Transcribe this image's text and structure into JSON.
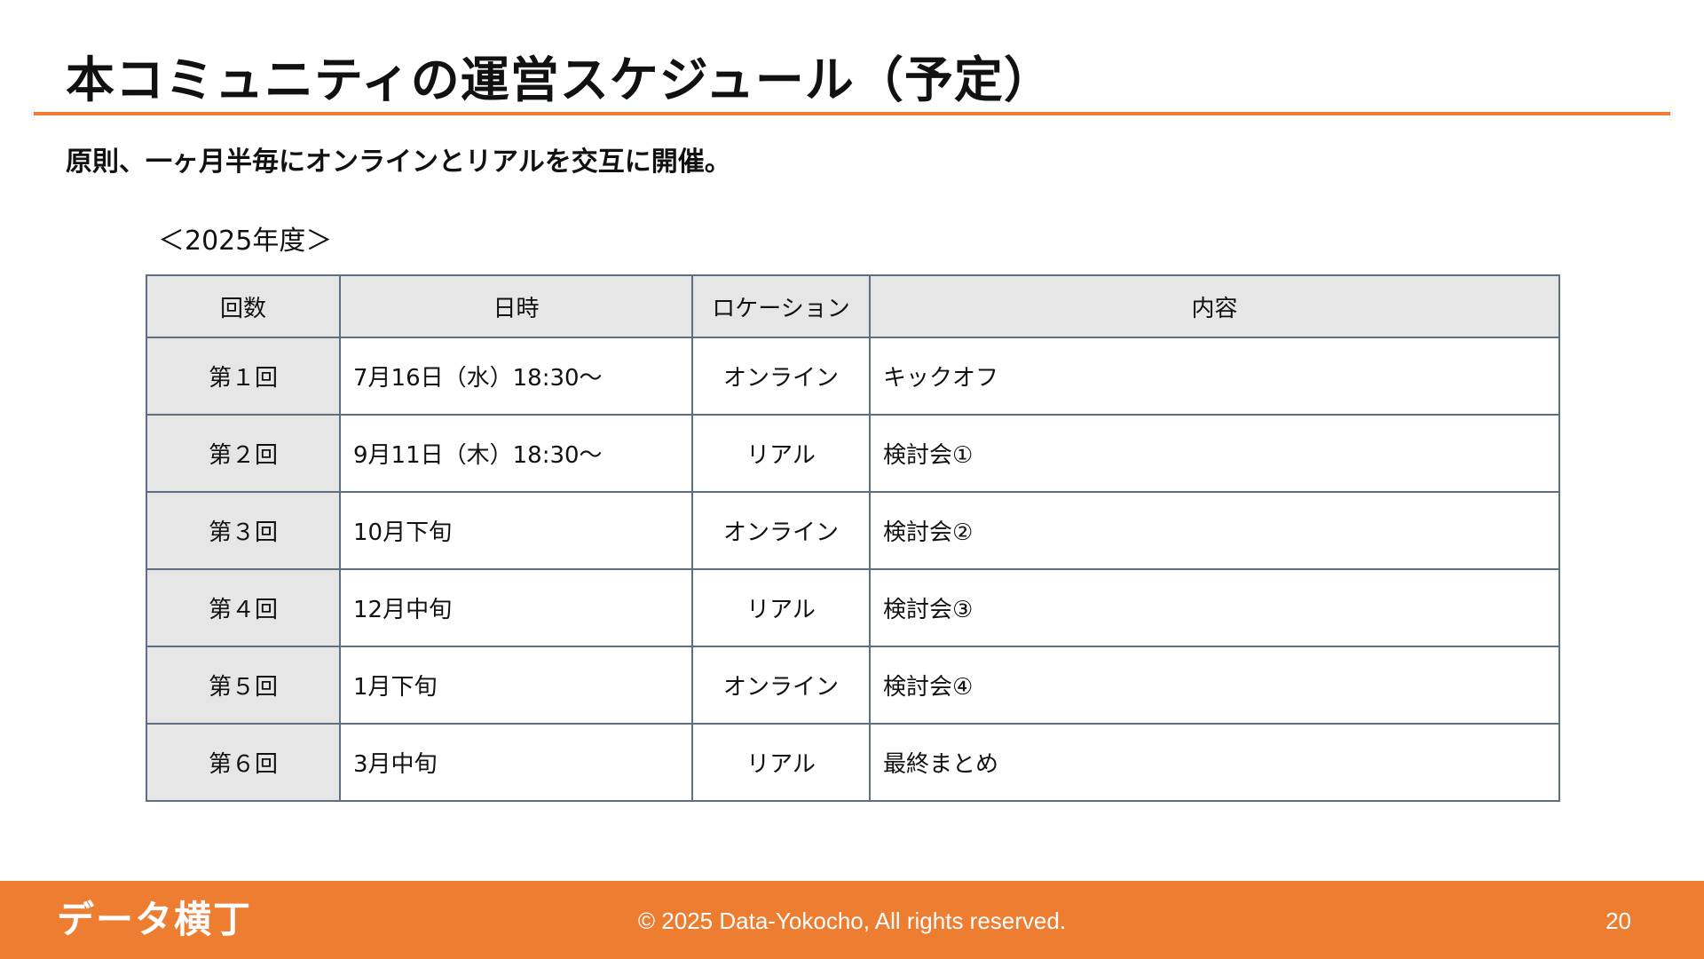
{
  "slide": {
    "title": "本コミュニティの運営スケジュール（予定）",
    "subtitle": "原則、一ヶ月半毎にオンラインとリアルを交互に開催。",
    "year_label": "＜2025年度＞"
  },
  "table": {
    "headers": {
      "round": "回数",
      "datetime": "日時",
      "location": "ロケーション",
      "content": "内容"
    },
    "rows": [
      {
        "round": "第１回",
        "datetime": "7月16日（水）18:30〜",
        "location": "オンライン",
        "content": "キックオフ"
      },
      {
        "round": "第２回",
        "datetime": "9月11日（木）18:30〜",
        "location": "リアル",
        "content": "検討会①"
      },
      {
        "round": "第３回",
        "datetime": "10月下旬",
        "location": "オンライン",
        "content": "検討会②"
      },
      {
        "round": "第４回",
        "datetime": "12月中旬",
        "location": "リアル",
        "content": "検討会③"
      },
      {
        "round": "第５回",
        "datetime": "1月下旬",
        "location": "オンライン",
        "content": "検討会④"
      },
      {
        "round": "第６回",
        "datetime": "3月中旬",
        "location": "リアル",
        "content": "最終まとめ"
      }
    ]
  },
  "footer": {
    "logo_text": "データ横丁",
    "copyright": "© 2025 Data-Yokocho, All rights reserved.",
    "page_number": "20"
  },
  "colors": {
    "accent": "#ED7D31",
    "header_fill": "#E6E6E6",
    "table_border": "#5F6E82"
  }
}
